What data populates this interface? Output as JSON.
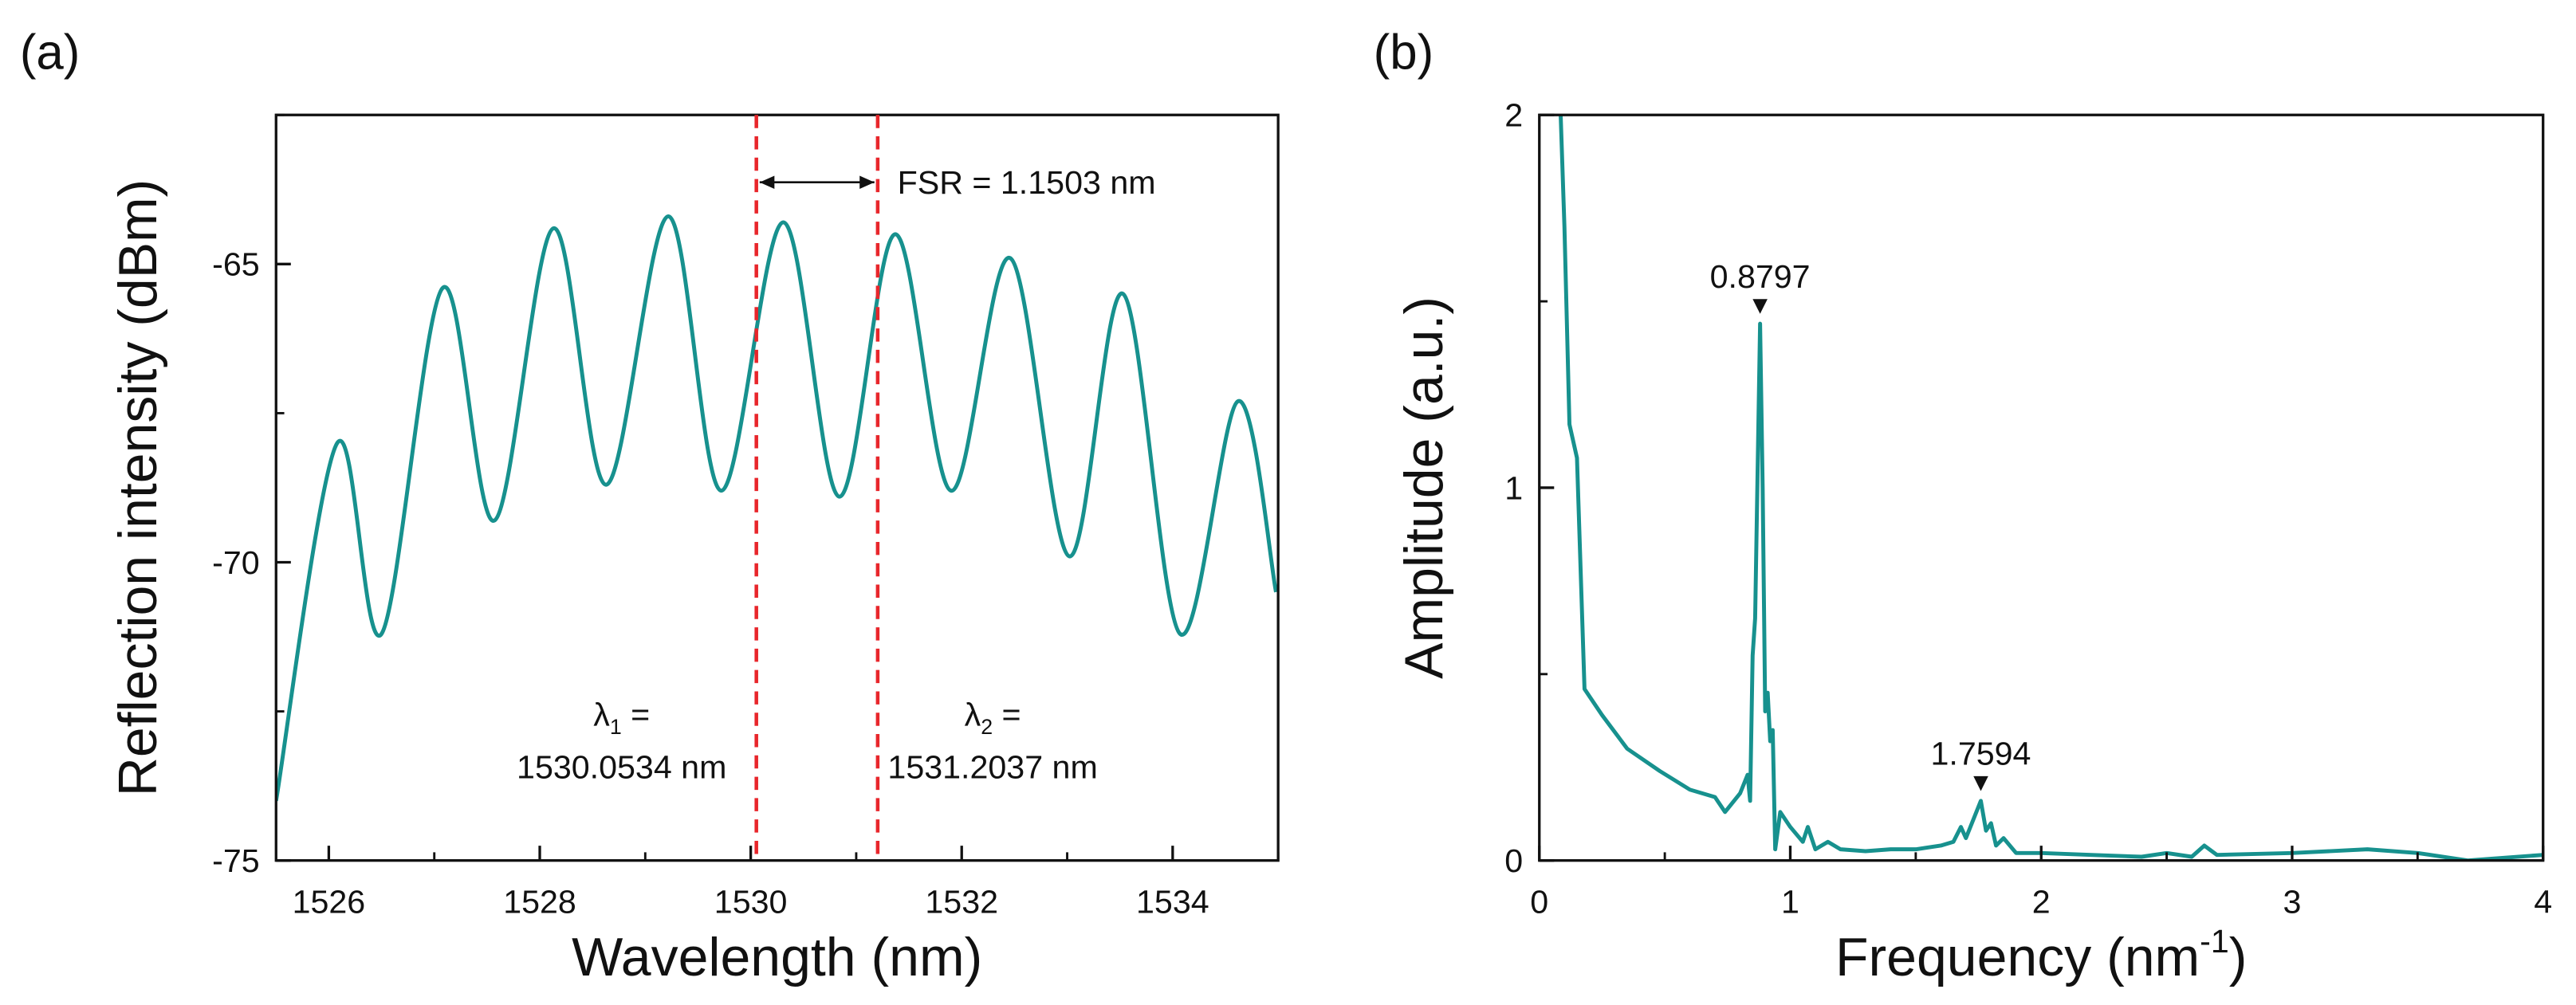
{
  "chart_data": [
    {
      "type": "line",
      "panel": "(a)",
      "xlabel": "Wavelength (nm)",
      "ylabel": "Reflection intensity (dBm)",
      "xlim": [
        1525.5,
        1535
      ],
      "ylim": [
        -75,
        -62.5
      ],
      "xticks": [
        1526,
        1528,
        1530,
        1532,
        1534
      ],
      "xminorticks": [
        1527,
        1529,
        1531,
        1533,
        1535
      ],
      "yticks": [
        -75,
        -70,
        -65
      ],
      "yminorticks": [
        -72.5,
        -67.5,
        -62.5
      ],
      "smooth": true,
      "x": [
        1525.5,
        1526.08,
        1526.5,
        1527.08,
        1527.57,
        1528.13,
        1528.63,
        1529.22,
        1529.72,
        1530.31,
        1530.84,
        1531.37,
        1531.9,
        1532.46,
        1533.02,
        1533.53,
        1534.07,
        1534.62,
        1534.98
      ],
      "series": [
        {
          "color": "#17918e",
          "values": [
            -74.0,
            -68.0,
            -71.2,
            -65.4,
            -69.3,
            -64.4,
            -68.7,
            -64.2,
            -68.8,
            -64.3,
            -68.9,
            -64.5,
            -68.8,
            -64.9,
            -69.9,
            -65.5,
            -71.2,
            -67.3,
            -70.5
          ]
        }
      ],
      "vlines": [
        1530.0534,
        1531.2037
      ],
      "vline_color": "#e8262b",
      "fsr_text": "FSR = 1.1503 nm",
      "lambda_labels": [
        {
          "symbol": "λ",
          "subscript": "1",
          "suffix": " =",
          "value": "1530.0534 nm"
        },
        {
          "symbol": "λ",
          "subscript": "2",
          "suffix": " =",
          "value": "1531.2037 nm"
        }
      ]
    },
    {
      "type": "line",
      "panel": "(b)",
      "xlabel": [
        "Frequency (nm",
        "-1",
        ")"
      ],
      "ylabel": "Amplitude (a.u.)",
      "xlim": [
        0,
        4
      ],
      "ylim": [
        0,
        2
      ],
      "xticks": [
        0,
        1,
        2,
        3,
        4
      ],
      "xminorticks": [
        0.5,
        1.5,
        2.5,
        3.5
      ],
      "yticks": [
        0,
        1,
        2
      ],
      "yminorticks": [
        0.5,
        1.5
      ],
      "smooth": false,
      "x": [
        0.085,
        0.1,
        0.12,
        0.15,
        0.18,
        0.25,
        0.35,
        0.48,
        0.6,
        0.7,
        0.74,
        0.8,
        0.83,
        0.84,
        0.85,
        0.86,
        0.8797,
        0.89,
        0.9,
        0.91,
        0.92,
        0.93,
        0.94,
        0.96,
        1.0,
        1.05,
        1.07,
        1.1,
        1.15,
        1.2,
        1.3,
        1.4,
        1.5,
        1.6,
        1.65,
        1.68,
        1.7,
        1.7594,
        1.78,
        1.8,
        1.82,
        1.85,
        1.9,
        2.0,
        2.2,
        2.4,
        2.5,
        2.6,
        2.65,
        2.7,
        3.0,
        3.3,
        3.5,
        3.7,
        3.8,
        4.0
      ],
      "series": [
        {
          "color": "#17918e",
          "values": [
            2.0,
            1.7,
            1.17,
            1.08,
            0.46,
            0.39,
            0.3,
            0.24,
            0.19,
            0.17,
            0.13,
            0.18,
            0.23,
            0.16,
            0.55,
            0.65,
            1.44,
            1.0,
            0.4,
            0.45,
            0.32,
            0.35,
            0.03,
            0.13,
            0.09,
            0.05,
            0.09,
            0.03,
            0.05,
            0.03,
            0.025,
            0.03,
            0.03,
            0.04,
            0.05,
            0.09,
            0.06,
            0.16,
            0.08,
            0.1,
            0.04,
            0.06,
            0.02,
            0.02,
            0.015,
            0.01,
            0.02,
            0.01,
            0.04,
            0.015,
            0.02,
            0.03,
            0.02,
            0.0,
            0.005,
            0.015
          ]
        }
      ],
      "peaks": [
        {
          "text": "0.8797",
          "x": 0.8797,
          "y": 1.44
        },
        {
          "text": "1.7594",
          "x": 1.7594,
          "y": 0.16
        }
      ]
    }
  ]
}
